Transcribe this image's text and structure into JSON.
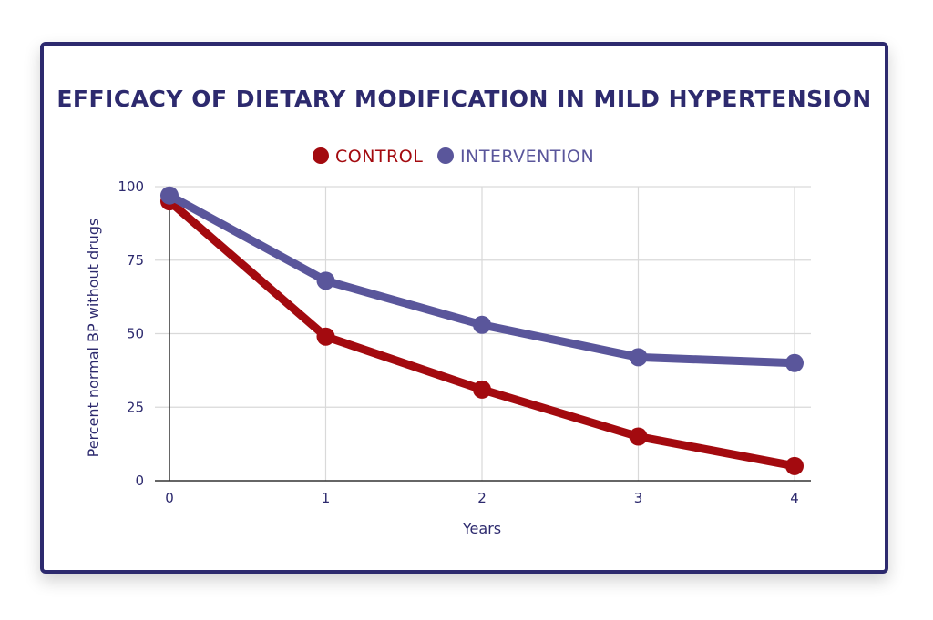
{
  "chart_data": {
    "type": "line",
    "title": "EFFICACY OF DIETARY MODIFICATION IN MILD HYPERTENSION",
    "xlabel": "Years",
    "ylabel": "Percent normal BP without drugs",
    "x": [
      0,
      1,
      2,
      3,
      4
    ],
    "x_tick_labels": [
      "0",
      "1",
      "2",
      "3",
      "4"
    ],
    "y_ticks": [
      0,
      25,
      50,
      75,
      100
    ],
    "y_tick_labels": [
      "0",
      "25",
      "50",
      "75",
      "100"
    ],
    "xlim": [
      0,
      4
    ],
    "ylim": [
      0,
      100
    ],
    "grid": true,
    "legend_position": "top-center",
    "series": [
      {
        "name": "CONTROL",
        "color": "#a30a0f",
        "values": [
          95,
          49,
          31,
          15,
          5
        ]
      },
      {
        "name": "INTERVENTION",
        "color": "#5a569b",
        "values": [
          97,
          68,
          53,
          42,
          40
        ]
      }
    ]
  }
}
